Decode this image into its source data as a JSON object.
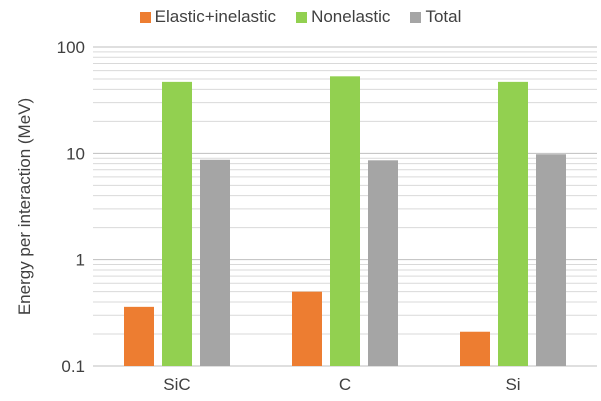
{
  "chart_data": {
    "type": "bar",
    "title": "",
    "xlabel": "",
    "ylabel": "Energy per interaction  (MeV)",
    "yscale": "log",
    "ylim": [
      0.1,
      100
    ],
    "y_ticks": [
      "0.1",
      "1",
      "10",
      "100"
    ],
    "grid": true,
    "legend_position": "top",
    "categories": [
      "SiC",
      "C",
      "Si"
    ],
    "series": [
      {
        "name": "Elastic+inelastic",
        "color": "#ED7D31",
        "values": [
          0.36,
          0.5,
          0.21
        ]
      },
      {
        "name": "Nonelastic",
        "color": "#92D050",
        "values": [
          47,
          53,
          47
        ]
      },
      {
        "name": "Total",
        "color": "#A5A5A5",
        "values": [
          8.7,
          8.6,
          9.8
        ]
      }
    ]
  }
}
